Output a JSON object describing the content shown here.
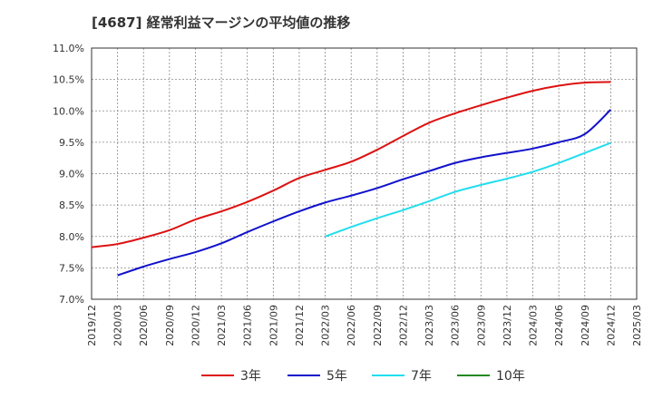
{
  "chart_data": {
    "type": "line",
    "title": "[4687]  経常利益マージンの平均値の推移",
    "xlabel": "",
    "ylabel": "",
    "grid": true,
    "legend_position": "bottom",
    "ylim": [
      7.0,
      11.0
    ],
    "y_ticks": [
      "7.0%",
      "7.5%",
      "8.0%",
      "8.5%",
      "9.0%",
      "9.5%",
      "10.0%",
      "10.5%",
      "11.0%"
    ],
    "x_ticks": [
      "2019/12",
      "2020/03",
      "2020/06",
      "2020/09",
      "2020/12",
      "2021/03",
      "2021/06",
      "2021/09",
      "2021/12",
      "2022/03",
      "2022/06",
      "2022/09",
      "2022/12",
      "2023/03",
      "2023/06",
      "2023/09",
      "2023/12",
      "2024/03",
      "2024/06",
      "2024/09",
      "2024/12",
      "2025/03"
    ],
    "series": [
      {
        "name": "3年",
        "color": "#dd1111",
        "x": [
          "2019/12",
          "2020/03",
          "2020/06",
          "2020/09",
          "2020/12",
          "2021/03",
          "2021/06",
          "2021/09",
          "2021/12",
          "2022/03",
          "2022/06",
          "2022/09",
          "2022/12",
          "2023/03",
          "2023/06",
          "2023/09",
          "2023/12",
          "2024/03",
          "2024/06",
          "2024/09",
          "2024/12"
        ],
        "values": [
          7.83,
          7.88,
          7.98,
          8.1,
          8.27,
          8.4,
          8.55,
          8.73,
          8.93,
          9.06,
          9.19,
          9.38,
          9.6,
          9.81,
          9.96,
          10.09,
          10.21,
          10.32,
          10.4,
          10.45,
          10.46
        ]
      },
      {
        "name": "5年",
        "color": "#1111cc",
        "x": [
          "2020/03",
          "2020/06",
          "2020/09",
          "2020/12",
          "2021/03",
          "2021/06",
          "2021/09",
          "2021/12",
          "2022/03",
          "2022/06",
          "2022/09",
          "2022/12",
          "2023/03",
          "2023/06",
          "2023/09",
          "2023/12",
          "2024/03",
          "2024/06",
          "2024/09",
          "2024/12"
        ],
        "values": [
          7.38,
          7.52,
          7.64,
          7.75,
          7.89,
          8.07,
          8.24,
          8.4,
          8.54,
          8.65,
          8.77,
          8.91,
          9.04,
          9.17,
          9.26,
          9.33,
          9.4,
          9.5,
          9.63,
          10.02
        ]
      },
      {
        "name": "7年",
        "color": "#22ddee",
        "x": [
          "2022/03",
          "2022/06",
          "2022/09",
          "2022/12",
          "2023/03",
          "2023/06",
          "2023/09",
          "2023/12",
          "2024/03",
          "2024/06",
          "2024/09",
          "2024/12"
        ],
        "values": [
          8.0,
          8.15,
          8.29,
          8.42,
          8.56,
          8.71,
          8.82,
          8.92,
          9.03,
          9.17,
          9.33,
          9.49
        ]
      },
      {
        "name": "10年",
        "color": "#228822",
        "x": [],
        "values": []
      }
    ]
  }
}
